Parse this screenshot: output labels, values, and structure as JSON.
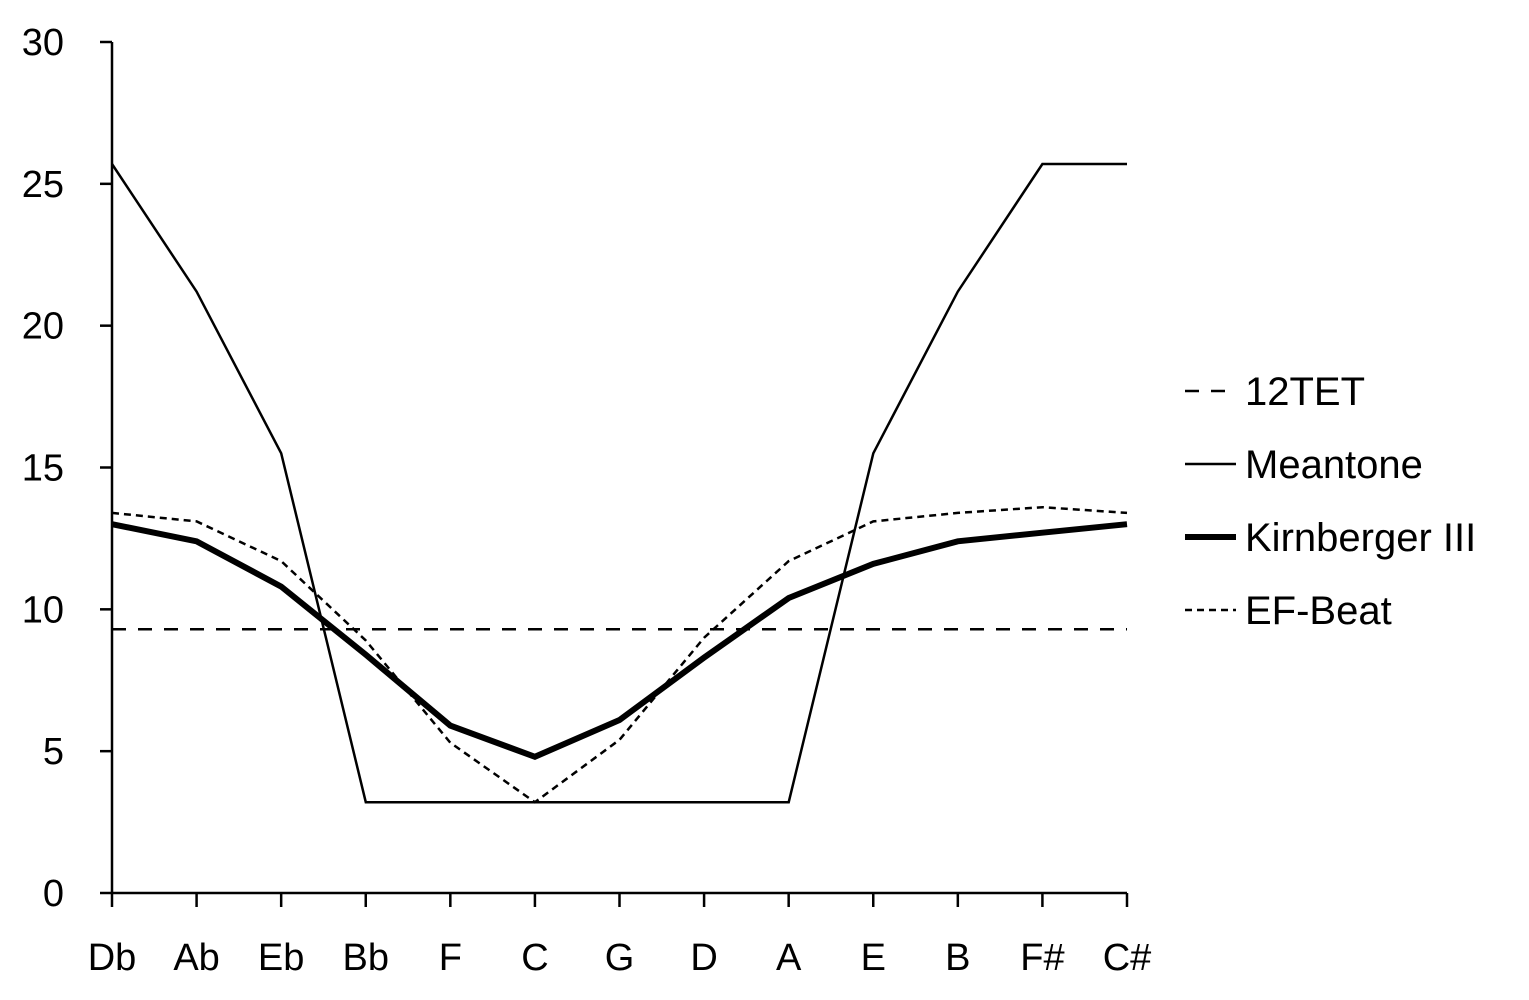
{
  "chart_data": {
    "type": "line",
    "title": "",
    "xlabel": "",
    "ylabel": "",
    "categories": [
      "Db",
      "Ab",
      "Eb",
      "Bb",
      "F",
      "C",
      "G",
      "D",
      "A",
      "E",
      "B",
      "F#",
      "C#"
    ],
    "ylim": [
      0,
      30
    ],
    "yticks": [
      "0",
      "5",
      "10",
      "15",
      "20",
      "25",
      "30"
    ],
    "grid": false,
    "legend_position": "right",
    "series": [
      {
        "name": "12TET",
        "style": "dashed",
        "color": "#000000",
        "values": [
          9.3,
          9.3,
          9.3,
          9.3,
          9.3,
          9.3,
          9.3,
          9.3,
          9.3,
          9.3,
          9.3,
          9.3,
          9.3
        ]
      },
      {
        "name": "Meantone",
        "style": "solid",
        "color": "#000000",
        "values": [
          25.7,
          21.2,
          15.5,
          3.2,
          3.2,
          3.2,
          3.2,
          3.2,
          3.2,
          15.5,
          21.2,
          25.7,
          25.7
        ]
      },
      {
        "name": "Kirnberger III",
        "style": "thick",
        "color": "#000000",
        "values": [
          13.0,
          12.4,
          10.8,
          8.4,
          5.9,
          4.8,
          6.1,
          8.3,
          10.4,
          11.6,
          12.4,
          12.7,
          13.0
        ]
      },
      {
        "name": "EF-Beat",
        "style": "dotted",
        "color": "#000000",
        "values": [
          13.4,
          13.1,
          11.7,
          8.9,
          5.3,
          3.2,
          5.4,
          9.0,
          11.7,
          13.1,
          13.4,
          13.6,
          13.4
        ]
      }
    ]
  }
}
